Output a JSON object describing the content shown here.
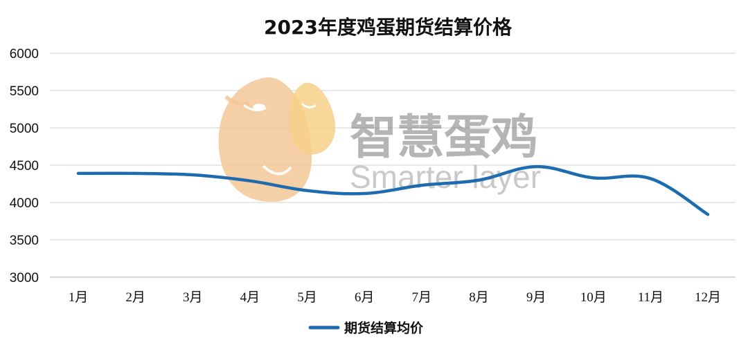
{
  "chart_data": {
    "type": "line",
    "title": "2023年度鸡蛋期货结算价格",
    "xlabel": "",
    "ylabel": "",
    "categories": [
      "1月",
      "2月",
      "3月",
      "4月",
      "5月",
      "6月",
      "7月",
      "8月",
      "9月",
      "10月",
      "11月",
      "12月"
    ],
    "ylim": [
      3000,
      6000
    ],
    "yticks": [
      "3000",
      "3500",
      "4000",
      "4500",
      "5000",
      "5500",
      "6000"
    ],
    "grid": true,
    "legend_position": "bottom",
    "series": [
      {
        "name": "期货结算均价",
        "color": "#1f6bb0",
        "values": [
          4390,
          4390,
          4370,
          4290,
          4160,
          4120,
          4230,
          4300,
          4480,
          4330,
          4320,
          3840
        ]
      }
    ]
  },
  "watermark": {
    "brand_cn": "智慧蛋鸡",
    "brand_en": "Smarter layer",
    "logo_colors": [
      "#f3c796",
      "#f7d08a"
    ]
  }
}
